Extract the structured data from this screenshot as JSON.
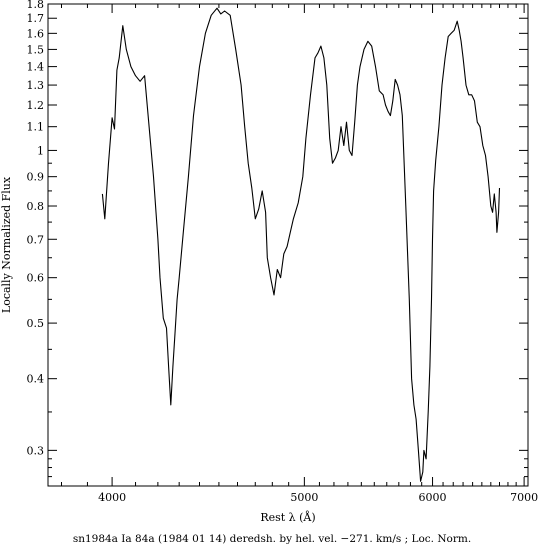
{
  "chart_data": {
    "type": "line",
    "title": "",
    "caption": "sn1984a Ia 84a (1984 01 14) deredsh. by hel. vel.  −271. km/s ;  Loc. Norm.",
    "xlabel": "Rest λ (Å)",
    "ylabel": "Locally Normalized Flux",
    "xscale": "reciprocal",
    "yscale": "log",
    "xlim": [
      3750,
      7050
    ],
    "ylim": [
      0.26,
      1.8
    ],
    "x_ticks": [
      4000,
      5000,
      6000,
      7000
    ],
    "y_ticks": [
      0.3,
      0.4,
      0.5,
      0.6,
      0.7,
      0.8,
      0.9,
      1,
      1.1,
      1.2,
      1.3,
      1.4,
      1.5,
      1.6,
      1.7,
      1.8
    ],
    "grid": false,
    "series": [
      {
        "x": [
          3960,
          3970,
          3985,
          4000,
          4010,
          4020,
          4030,
          4045,
          4060,
          4080,
          4100,
          4120,
          4140,
          4160,
          4180,
          4200,
          4210,
          4225,
          4240,
          4250,
          4260,
          4270,
          4280,
          4290,
          4300,
          4320,
          4345,
          4370,
          4400,
          4430,
          4460,
          4490,
          4510,
          4530,
          4560,
          4590,
          4620,
          4640,
          4660,
          4680,
          4700,
          4720,
          4740,
          4760,
          4770,
          4790,
          4810,
          4830,
          4850,
          4870,
          4890,
          4910,
          4930,
          4960,
          4990,
          5010,
          5040,
          5070,
          5090,
          5110,
          5130,
          5150,
          5170,
          5190,
          5210,
          5230,
          5250,
          5270,
          5290,
          5310,
          5330,
          5350,
          5370,
          5390,
          5420,
          5450,
          5480,
          5510,
          5540,
          5570,
          5590,
          5610,
          5630,
          5650,
          5670,
          5690,
          5710,
          5730,
          5760,
          5790,
          5810,
          5830,
          5850,
          5870,
          5890,
          5910,
          5920,
          5940,
          5960,
          5975,
          5990,
          6000,
          6010,
          6030,
          6060,
          6090,
          6120,
          6150,
          6180,
          6210,
          6240,
          6260,
          6280,
          6300,
          6330,
          6360,
          6390,
          6420,
          6450,
          6480,
          6510,
          6540,
          6570,
          6600,
          6620,
          6640,
          6660,
          6670,
          6690,
          6700
        ],
        "y": [
          0.84,
          0.76,
          0.95,
          1.14,
          1.09,
          1.38,
          1.45,
          1.65,
          1.5,
          1.4,
          1.35,
          1.32,
          1.35,
          1.1,
          0.9,
          0.7,
          0.6,
          0.51,
          0.49,
          0.42,
          0.36,
          0.42,
          0.48,
          0.55,
          0.6,
          0.72,
          0.9,
          1.15,
          1.4,
          1.6,
          1.72,
          1.77,
          1.73,
          1.75,
          1.72,
          1.5,
          1.3,
          1.1,
          0.95,
          0.86,
          0.76,
          0.79,
          0.85,
          0.78,
          0.65,
          0.6,
          0.56,
          0.62,
          0.6,
          0.66,
          0.68,
          0.72,
          0.76,
          0.81,
          0.9,
          1.05,
          1.25,
          1.45,
          1.48,
          1.52,
          1.45,
          1.3,
          1.05,
          0.95,
          0.97,
          1.0,
          1.1,
          1.02,
          1.12,
          1.0,
          0.98,
          1.12,
          1.3,
          1.4,
          1.5,
          1.55,
          1.52,
          1.4,
          1.27,
          1.25,
          1.2,
          1.17,
          1.15,
          1.22,
          1.33,
          1.3,
          1.25,
          1.15,
          0.8,
          0.55,
          0.4,
          0.36,
          0.34,
          0.3,
          0.265,
          0.275,
          0.3,
          0.29,
          0.35,
          0.42,
          0.55,
          0.7,
          0.85,
          0.96,
          1.1,
          1.3,
          1.45,
          1.58,
          1.6,
          1.62,
          1.68,
          1.62,
          1.55,
          1.45,
          1.3,
          1.25,
          1.25,
          1.22,
          1.12,
          1.1,
          1.02,
          0.98,
          0.9,
          0.8,
          0.78,
          0.84,
          0.78,
          0.72,
          0.78,
          0.86
        ]
      }
    ]
  }
}
